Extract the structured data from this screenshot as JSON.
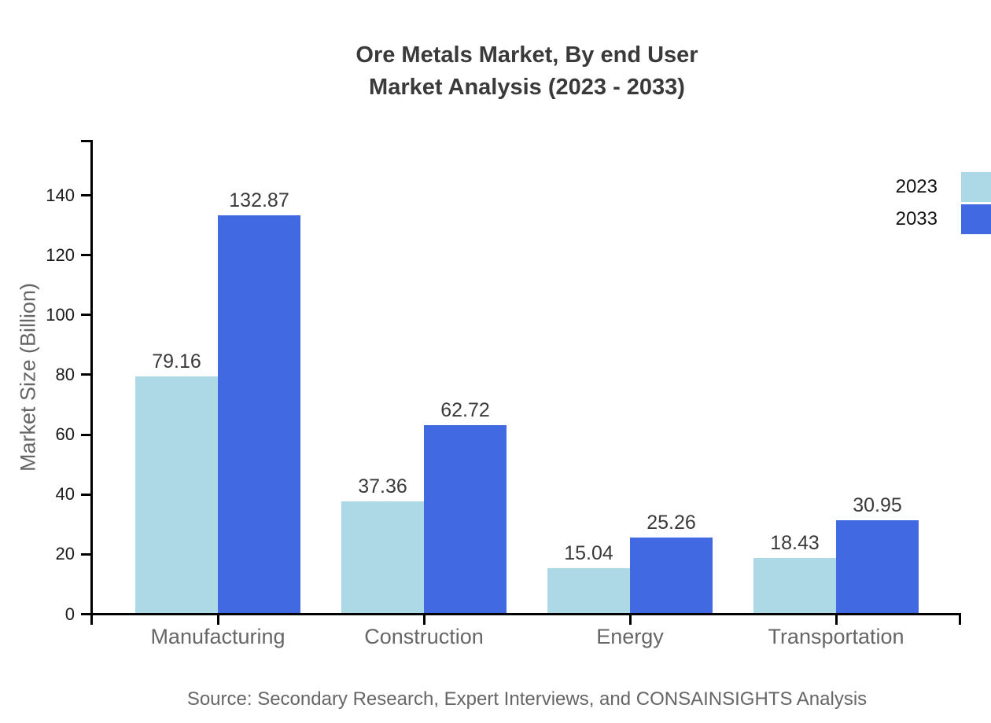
{
  "title": {
    "line1": "Ore Metals Market, By end User",
    "line2": "Market Analysis (2023 - 2033)"
  },
  "source": "Source: Secondary Research, Expert Interviews, and CONSAINSIGHTS Analysis",
  "chart_data": {
    "type": "bar",
    "categories": [
      "Manufacturing",
      "Construction",
      "Energy",
      "Transportation"
    ],
    "series": [
      {
        "name": "2023",
        "color": "#add8e6",
        "values": [
          79.16,
          37.36,
          15.04,
          18.43
        ]
      },
      {
        "name": "2033",
        "color": "#4169e1",
        "values": [
          132.87,
          62.72,
          25.26,
          30.95
        ]
      }
    ],
    "title": "Ore Metals Market, By end User Market Analysis (2023 - 2033)",
    "xlabel": "",
    "ylabel": "Market Size (Billion)",
    "yticks": [
      0,
      20,
      40,
      60,
      80,
      100,
      120,
      140
    ],
    "ylim": [
      0,
      158
    ],
    "grid": false,
    "value_labels": true,
    "legend_position": "top-right",
    "axis_color": "#000000"
  }
}
